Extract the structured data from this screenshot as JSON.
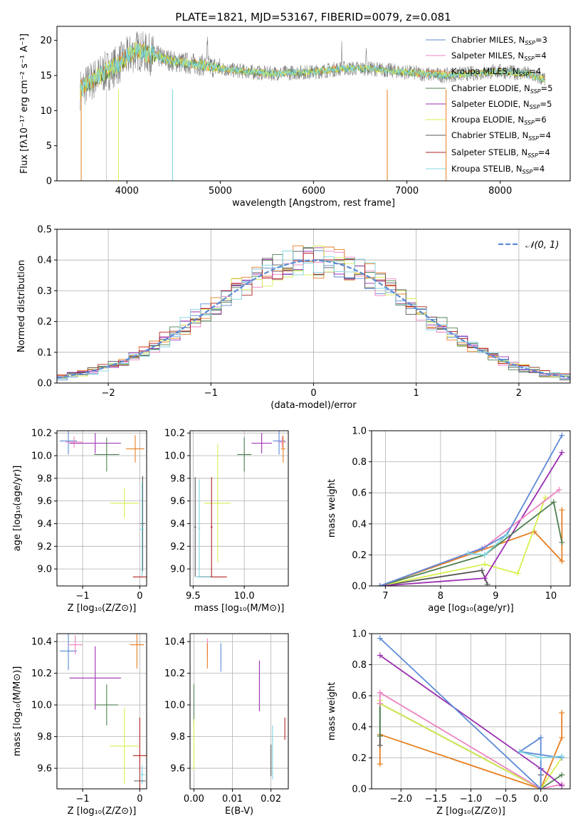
{
  "title": "PLATE=1821, MJD=53167, FIBERID=0079, z=0.081",
  "colors": {
    "Chabrier MILES": "#5b8ad6",
    "Salpeter MILES": "#ee82c0",
    "Kroupa MILES": "#e67e22",
    "Chabrier ELODIE": "#4f8050",
    "Salpeter ELODIE": "#9b2fb0",
    "Kroupa ELODIE": "#d7ef4f",
    "Chabrier STELIB": "#555555",
    "Salpeter STELIB": "#b22222",
    "Kroupa STELIB": "#7fd4e0"
  },
  "chart_data": [
    {
      "id": "spectrum",
      "type": "line",
      "xlabel": "wavelength [Angstrom, rest frame]",
      "ylabel": "Flux [fλ10⁻¹⁷ erg cm⁻² s⁻¹ A⁻¹]",
      "xlim": [
        3250,
        8750
      ],
      "ylim": [
        0,
        22
      ],
      "xticks": [
        "4000",
        "5000",
        "6000",
        "7000",
        "8000"
      ],
      "yticks": [
        "0",
        "5",
        "10",
        "15",
        "20"
      ],
      "legend": [
        {
          "name": "Chabrier MILES",
          "nssp": "3"
        },
        {
          "name": "Salpeter MILES",
          "nssp": "4"
        },
        {
          "name": "Kroupa MILES",
          "nssp": "4"
        },
        {
          "name": "Chabrier ELODIE",
          "nssp": "5"
        },
        {
          "name": "Salpeter ELODIE",
          "nssp": "5"
        },
        {
          "name": "Kroupa ELODIE",
          "nssp": "6"
        },
        {
          "name": "Chabrier STELIB",
          "nssp": "4"
        },
        {
          "name": "Salpeter STELIB",
          "nssp": "4"
        },
        {
          "name": "Kroupa STELIB",
          "nssp": "4"
        }
      ],
      "legend_loc": "upper right",
      "continuum_x": [
        3500,
        3700,
        3900,
        4100,
        4300,
        4500,
        4800,
        5100,
        5500,
        6000,
        6300,
        6600,
        6900,
        7200,
        7400,
        7700,
        8000,
        8300,
        8500
      ],
      "continuum_y": [
        13.0,
        15.0,
        16.5,
        18.6,
        17.8,
        17.0,
        16.5,
        15.8,
        15.3,
        15.5,
        16.0,
        16.0,
        15.6,
        15.2,
        15.0,
        15.3,
        15.6,
        15.2,
        14.3
      ]
    },
    {
      "id": "residuals",
      "type": "bar",
      "xlabel": "(data-model)/error",
      "ylabel": "Normed distribution",
      "xlim": [
        -2.5,
        2.5
      ],
      "ylim": [
        0,
        0.5
      ],
      "xticks": [
        "−2",
        "−1",
        "0",
        "1",
        "2"
      ],
      "yticks": [
        "0.0",
        "0.1",
        "0.2",
        "0.3",
        "0.4",
        "0.5"
      ],
      "bin_width": 0.1,
      "normal_label": "𝒩(0, 1)",
      "grid": true
    },
    {
      "id": "age-vs-Z",
      "type": "scatter",
      "xlabel": "Z [log₁₀(Z/Z⊙)]",
      "ylabel": "age  [log₁₀(age/yr)]",
      "xlim": [
        -1.45,
        0.12
      ],
      "ylim": [
        8.85,
        10.22
      ],
      "xticks": [
        {
          "v": -1,
          "t": "−1"
        },
        {
          "v": 0,
          "t": "0"
        }
      ],
      "yticks": [
        {
          "v": 9.0,
          "t": "9.0"
        },
        {
          "v": 9.2,
          "t": "9.2"
        },
        {
          "v": 9.4,
          "t": "9.4"
        },
        {
          "v": 9.6,
          "t": "9.6"
        },
        {
          "v": 9.8,
          "t": "9.8"
        },
        {
          "v": 10.0,
          "t": "10.0"
        },
        {
          "v": 10.2,
          "t": "10.2"
        }
      ],
      "points": [
        {
          "model": "Chabrier MILES",
          "x": -1.25,
          "xerr": 0.15,
          "y": 10.13,
          "yerr": 0.12
        },
        {
          "model": "Salpeter MILES",
          "x": -1.15,
          "xerr": 0.15,
          "y": 10.12,
          "yerr": 0.05
        },
        {
          "model": "Salpeter ELODIE",
          "x": -0.78,
          "xerr": 0.45,
          "y": 10.11,
          "yerr": 0.09
        },
        {
          "model": "Chabrier ELODIE",
          "x": -0.58,
          "xerr": 0.22,
          "y": 10.01,
          "yerr": 0.15
        },
        {
          "model": "Kroupa MILES",
          "x": -0.08,
          "xerr": 0.16,
          "y": 10.06,
          "yerr": 0.12
        },
        {
          "model": "Kroupa ELODIE",
          "x": -0.27,
          "xerr": 0.25,
          "y": 9.58,
          "yerr": 0.13
        },
        {
          "model": "Chabrier STELIB",
          "x": 0.05,
          "xerr": 0.04,
          "y": 9.4,
          "yerr": 0.42
        },
        {
          "model": "Kroupa STELIB",
          "x": 0.04,
          "xerr": 0.03,
          "y": 9.35,
          "yerr": 0.42
        },
        {
          "model": "Salpeter STELIB",
          "x": 0.0,
          "xerr": 0.12,
          "y": 8.93,
          "yerr": 0.0
        }
      ]
    },
    {
      "id": "age-vs-mass",
      "type": "scatter",
      "xlabel": "mass [log₁₀(M/M⊙)]",
      "ylabel": "",
      "xlim": [
        9.47,
        10.43
      ],
      "ylim": [
        8.85,
        10.22
      ],
      "xticks": [
        {
          "v": 9.5,
          "t": "9.5"
        },
        {
          "v": 10.0,
          "t": "10.0"
        }
      ],
      "yticks": [
        {
          "v": 9.0,
          "t": "9.0"
        },
        {
          "v": 9.2,
          "t": "9.2"
        },
        {
          "v": 9.4,
          "t": "9.4"
        },
        {
          "v": 9.6,
          "t": "9.6"
        },
        {
          "v": 9.8,
          "t": "9.8"
        },
        {
          "v": 10.0,
          "t": "10.0"
        },
        {
          "v": 10.2,
          "t": "10.2"
        }
      ],
      "points": [
        {
          "model": "Chabrier MILES",
          "x": 10.34,
          "xerr": 0.06,
          "y": 10.13,
          "yerr": 0.12
        },
        {
          "model": "Salpeter MILES",
          "x": 10.37,
          "xerr": 0.04,
          "y": 10.12,
          "yerr": 0.05
        },
        {
          "model": "Salpeter ELODIE",
          "x": 10.17,
          "xerr": 0.1,
          "y": 10.11,
          "yerr": 0.09
        },
        {
          "model": "Chabrier ELODIE",
          "x": 10.0,
          "xerr": 0.07,
          "y": 10.01,
          "yerr": 0.15
        },
        {
          "model": "Kroupa MILES",
          "x": 10.38,
          "xerr": 0.02,
          "y": 10.06,
          "yerr": 0.12
        },
        {
          "model": "Kroupa ELODIE",
          "x": 9.74,
          "xerr": 0.13,
          "y": 9.58,
          "yerr": 0.52
        },
        {
          "model": "Chabrier STELIB",
          "x": 9.52,
          "xerr": 0.01,
          "y": 9.37,
          "yerr": 0.44
        },
        {
          "model": "Kroupa STELIB",
          "x": 9.56,
          "xerr": 0.01,
          "y": 9.36,
          "yerr": 0.43
        },
        {
          "model": "Salpeter STELIB",
          "x": 9.68,
          "xerr": 0.01,
          "y": 9.37,
          "yerr": 0.44
        },
        {
          "model": "Salpeter STELIB",
          "x": 9.7,
          "xerr": 0.13,
          "y": 8.93,
          "yerr": 0.0
        },
        {
          "model": "Chabrier STELIB",
          "x": 9.61,
          "xerr": 0.07,
          "y": 8.93,
          "yerr": 0.0
        },
        {
          "model": "Kroupa STELIB",
          "x": 9.6,
          "xerr": 0.07,
          "y": 8.93,
          "yerr": 0.0
        }
      ]
    },
    {
      "id": "mass-weight-vs-age",
      "type": "line",
      "xlabel": "age  [log₁₀(age/yr)]",
      "ylabel": "mass weight",
      "xlim": [
        6.75,
        10.35
      ],
      "ylim": [
        0,
        1
      ],
      "xticks": [
        {
          "v": 7,
          "t": "7"
        },
        {
          "v": 8,
          "t": "8"
        },
        {
          "v": 9,
          "t": "9"
        },
        {
          "v": 10,
          "t": "10"
        }
      ],
      "yticks": [
        {
          "v": 0,
          "t": "0.0"
        },
        {
          "v": 0.2,
          "t": "0.2"
        },
        {
          "v": 0.4,
          "t": "0.4"
        },
        {
          "v": 0.6,
          "t": "0.6"
        },
        {
          "v": 0.8,
          "t": "0.8"
        },
        {
          "v": 1.0,
          "t": "1.0"
        }
      ],
      "grid": true,
      "series": [
        {
          "model": "Kroupa MILES",
          "x": [
            6.9,
            9.7,
            10.2,
            10.2
          ],
          "y": [
            0.0,
            0.35,
            0.16,
            0.49
          ]
        },
        {
          "model": "Chabrier STELIB",
          "x": [
            6.9,
            8.75,
            8.85
          ],
          "y": [
            0.0,
            0.1,
            0.01
          ]
        },
        {
          "model": "Kroupa ELODIE",
          "x": [
            6.9,
            8.8,
            9.4,
            9.9
          ],
          "y": [
            0.0,
            0.14,
            0.08,
            0.57
          ]
        },
        {
          "model": "Salpeter ELODIE",
          "x": [
            6.9,
            8.8,
            10.2
          ],
          "y": [
            0.0,
            0.05,
            0.86
          ]
        },
        {
          "model": "Chabrier ELODIE",
          "x": [
            6.9,
            8.8,
            10.05,
            10.2
          ],
          "y": [
            0.0,
            0.2,
            0.54,
            0.28
          ]
        },
        {
          "model": "Salpeter MILES",
          "x": [
            6.9,
            8.8,
            10.15
          ],
          "y": [
            0.0,
            0.25,
            0.62
          ]
        },
        {
          "model": "Chabrier MILES",
          "x": [
            6.9,
            8.5,
            8.75,
            9.2,
            10.2
          ],
          "y": [
            0.0,
            0.21,
            0.24,
            0.33,
            0.97
          ]
        },
        {
          "model": "Kroupa STELIB",
          "x": [
            8.5,
            8.8,
            9.2
          ],
          "y": [
            0.21,
            0.2,
            0.33
          ]
        }
      ]
    },
    {
      "id": "mass-vs-Z",
      "type": "scatter",
      "xlabel": "Z [log₁₀(Z/Z⊙)]",
      "ylabel": "mass [log₁₀(M/M⊙)]",
      "xlim": [
        -1.45,
        0.12
      ],
      "ylim": [
        9.47,
        10.45
      ],
      "xticks": [
        {
          "v": -1,
          "t": "−1"
        },
        {
          "v": 0,
          "t": "0"
        }
      ],
      "yticks": [
        {
          "v": 9.6,
          "t": "9.6"
        },
        {
          "v": 9.8,
          "t": "9.8"
        },
        {
          "v": 10.0,
          "t": "10.0"
        },
        {
          "v": 10.2,
          "t": "10.2"
        },
        {
          "v": 10.4,
          "t": "10.4"
        }
      ],
      "points": [
        {
          "model": "Chabrier MILES",
          "x": -1.25,
          "xerr": 0.15,
          "y": 10.34,
          "yerr": 0.12
        },
        {
          "model": "Salpeter MILES",
          "x": -1.13,
          "xerr": 0.13,
          "y": 10.38,
          "yerr": 0.06
        },
        {
          "model": "Salpeter ELODIE",
          "x": -0.78,
          "xerr": 0.45,
          "y": 10.17,
          "yerr": 0.2
        },
        {
          "model": "Chabrier ELODIE",
          "x": -0.58,
          "xerr": 0.2,
          "y": 10.0,
          "yerr": 0.13
        },
        {
          "model": "Kroupa MILES",
          "x": -0.05,
          "xerr": 0.12,
          "y": 10.38,
          "yerr": 0.15
        },
        {
          "model": "Kroupa ELODIE",
          "x": -0.27,
          "xerr": 0.25,
          "y": 9.74,
          "yerr": 0.24
        },
        {
          "model": "Salpeter STELIB",
          "x": 0.0,
          "xerr": 0.12,
          "y": 9.68,
          "yerr": 0.24
        },
        {
          "model": "Kroupa STELIB",
          "x": 0.04,
          "xerr": 0.05,
          "y": 9.56,
          "yerr": 0.06
        },
        {
          "model": "Chabrier STELIB",
          "x": 0.0,
          "xerr": 0.1,
          "y": 9.52,
          "yerr": 0.0
        }
      ]
    },
    {
      "id": "mass-vs-EBV",
      "type": "scatter",
      "xlabel": "E(B-V)",
      "ylabel": "",
      "xlim": [
        -0.001,
        0.0245
      ],
      "ylim": [
        9.47,
        10.45
      ],
      "xticks": [
        {
          "v": 0.0,
          "t": "0.00"
        },
        {
          "v": 0.01,
          "t": "0.01"
        },
        {
          "v": 0.02,
          "t": "0.02"
        }
      ],
      "yticks": [
        {
          "v": 9.6,
          "t": "9.6"
        },
        {
          "v": 9.8,
          "t": "9.8"
        },
        {
          "v": 10.0,
          "t": "10.0"
        },
        {
          "v": 10.2,
          "t": "10.2"
        },
        {
          "v": 10.4,
          "t": "10.4"
        }
      ],
      "points": [
        {
          "model": "Chabrier MILES",
          "x": 0.007,
          "xerr": 0.0,
          "y": 10.3,
          "yerr": 0.09
        },
        {
          "model": "Salpeter MILES",
          "x": 0.0035,
          "xerr": 0.0,
          "y": 10.36,
          "yerr": 0.06
        },
        {
          "model": "Kroupa MILES",
          "x": 0.0035,
          "xerr": 0.0,
          "y": 10.31,
          "yerr": 0.08
        },
        {
          "model": "Salpeter ELODIE",
          "x": 0.017,
          "xerr": 0.0,
          "y": 10.12,
          "yerr": 0.16
        },
        {
          "model": "Chabrier ELODIE",
          "x": 0.0,
          "xerr": 0.0,
          "y": 10.0,
          "yerr": 0.13
        },
        {
          "model": "Kroupa ELODIE",
          "x": 0.0,
          "xerr": 0.0,
          "y": 9.75,
          "yerr": 0.16
        },
        {
          "model": "Salpeter STELIB",
          "x": 0.0236,
          "xerr": 0.0,
          "y": 9.85,
          "yerr": 0.07
        },
        {
          "model": "Kroupa STELIB",
          "x": 0.0204,
          "xerr": 0.0,
          "y": 9.7,
          "yerr": 0.17
        },
        {
          "model": "Chabrier STELIB",
          "x": 0.02,
          "xerr": 0.0,
          "y": 9.65,
          "yerr": 0.1
        }
      ]
    },
    {
      "id": "mass-weight-vs-Z",
      "type": "line",
      "xlabel": "Z [log₁₀(Z/Z⊙)]",
      "ylabel": "mass weight",
      "xlim": [
        -2.42,
        0.42
      ],
      "ylim": [
        0,
        1
      ],
      "xticks": [
        {
          "v": -2.0,
          "t": "−2.0"
        },
        {
          "v": -1.5,
          "t": "−1.5"
        },
        {
          "v": -1.0,
          "t": "−1.0"
        },
        {
          "v": -0.5,
          "t": "−0.5"
        },
        {
          "v": 0.0,
          "t": "0.0"
        }
      ],
      "yticks": [
        {
          "v": 0,
          "t": "0.0"
        },
        {
          "v": 0.2,
          "t": "0.2"
        },
        {
          "v": 0.4,
          "t": "0.4"
        },
        {
          "v": 0.6,
          "t": "0.6"
        },
        {
          "v": 0.8,
          "t": "0.8"
        },
        {
          "v": 1.0,
          "t": "1.0"
        }
      ],
      "grid": true,
      "series": [
        {
          "model": "Kroupa MILES",
          "x": [
            -2.3,
            -2.3,
            0.0,
            0.3,
            0.3
          ],
          "y": [
            0.16,
            0.35,
            0.0,
            0.33,
            0.49
          ]
        },
        {
          "model": "Chabrier STELIB",
          "x": [
            -2.3,
            -2.3,
            0.0,
            0.0
          ],
          "y": [
            0.28,
            0.55,
            0.0,
            0.09
          ]
        },
        {
          "model": "Chabrier ELODIE",
          "x": [
            -2.3,
            -2.3,
            0.0,
            0.3
          ],
          "y": [
            0.34,
            0.55,
            0.0,
            0.09
          ]
        },
        {
          "model": "Kroupa ELODIE",
          "x": [
            -2.3,
            -2.3,
            0.0,
            0.3
          ],
          "y": [
            0.57,
            0.55,
            0.0,
            0.2
          ]
        },
        {
          "model": "Salpeter MILES",
          "x": [
            -2.3,
            -2.3,
            0.0,
            0.3
          ],
          "y": [
            0.55,
            0.62,
            0.0,
            0.03
          ]
        },
        {
          "model": "Salpeter ELODIE",
          "x": [
            -2.3,
            0.0,
            0.3
          ],
          "y": [
            0.86,
            0.13,
            0.02
          ]
        },
        {
          "model": "Chabrier MILES",
          "x": [
            -2.3,
            0.0,
            0.0,
            -0.3,
            0.3
          ],
          "y": [
            0.97,
            0.0,
            0.33,
            0.24,
            0.2
          ]
        },
        {
          "model": "Kroupa STELIB",
          "x": [
            -0.3,
            0.0,
            0.3
          ],
          "y": [
            0.24,
            0.2,
            0.21
          ]
        }
      ]
    }
  ]
}
